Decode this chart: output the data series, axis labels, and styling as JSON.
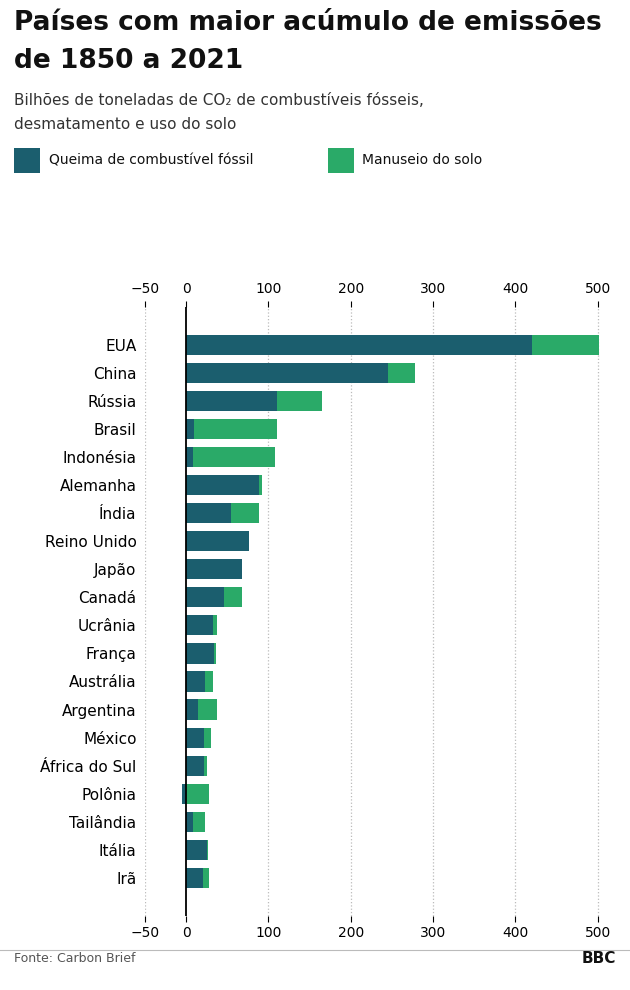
{
  "title_line1": "Países com maior acúmulo de emissões",
  "title_line2": "de 1850 a 2021",
  "subtitle_line1": "Bilhões de toneladas de CO₂ de combustíveis fósseis,",
  "subtitle_line2": "desmatamento e uso do solo",
  "legend_fossil": "Queima de combustível fóssil",
  "legend_land": "Manuseio do solo",
  "source": "Fonte: Carbon Brief",
  "color_fossil": "#1b5e6e",
  "color_land": "#2aaa68",
  "background": "#ffffff",
  "countries": [
    "EUA",
    "China",
    "Rússia",
    "Brasil",
    "Indonésia",
    "Alemanha",
    "Índia",
    "Reino Unido",
    "Japão",
    "Canadá",
    "Ucrânia",
    "França",
    "Austrália",
    "Argentina",
    "México",
    "África do Sul",
    "Polônia",
    "Tailândia",
    "Itália",
    "Irã"
  ],
  "fossil": [
    420,
    245,
    110,
    10,
    8,
    92,
    55,
    76,
    68,
    46,
    33,
    36,
    23,
    15,
    22,
    22,
    -5,
    8,
    25,
    20
  ],
  "land": [
    82,
    33,
    55,
    100,
    100,
    -3,
    33,
    0,
    0,
    22,
    5,
    -2,
    10,
    22,
    8,
    4,
    28,
    15,
    2,
    8
  ],
  "xlim_left": -50,
  "xlim_right": 520,
  "xticks": [
    -50,
    0,
    100,
    200,
    300,
    400,
    500
  ],
  "bar_height": 0.72,
  "title_fontsize": 19,
  "subtitle_fontsize": 11,
  "tick_fontsize": 10,
  "ylabel_fontsize": 11
}
